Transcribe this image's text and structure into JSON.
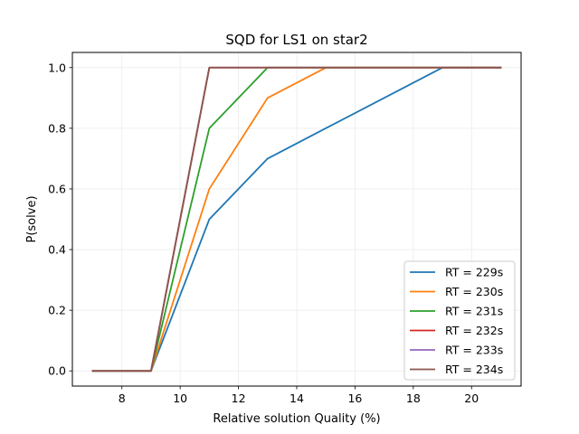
{
  "chart_data": {
    "type": "line",
    "title": "SQD for LS1 on star2",
    "xlabel": "Relative solution Quality (%)",
    "ylabel": "P(solve)",
    "xlim": [
      6.3,
      21.7
    ],
    "ylim": [
      -0.05,
      1.05
    ],
    "xticks": [
      8,
      10,
      12,
      14,
      16,
      18,
      20
    ],
    "yticks": [
      0.0,
      0.2,
      0.4,
      0.6,
      0.8,
      1.0
    ],
    "grid": true,
    "legend_position": "lower right",
    "x": [
      7,
      9,
      11,
      13,
      15,
      17,
      19,
      21
    ],
    "series": [
      {
        "name": "RT = 229s",
        "color": "#1f77b4",
        "values": [
          0,
          0,
          0.5,
          0.7,
          0.8,
          0.9,
          1.0,
          1.0
        ]
      },
      {
        "name": "RT = 230s",
        "color": "#ff7f0e",
        "values": [
          0,
          0,
          0.6,
          0.9,
          1.0,
          1.0,
          1.0,
          1.0
        ]
      },
      {
        "name": "RT = 231s",
        "color": "#2ca02c",
        "values": [
          0,
          0,
          0.8,
          1.0,
          1.0,
          1.0,
          1.0,
          1.0
        ]
      },
      {
        "name": "RT = 232s",
        "color": "#d62728",
        "values": [
          0,
          0,
          1.0,
          1.0,
          1.0,
          1.0,
          1.0,
          1.0
        ]
      },
      {
        "name": "RT = 233s",
        "color": "#9467bd",
        "values": [
          0,
          0,
          1.0,
          1.0,
          1.0,
          1.0,
          1.0,
          1.0
        ]
      },
      {
        "name": "RT = 234s",
        "color": "#8c564b",
        "values": [
          0,
          0,
          1.0,
          1.0,
          1.0,
          1.0,
          1.0,
          1.0
        ]
      }
    ]
  }
}
